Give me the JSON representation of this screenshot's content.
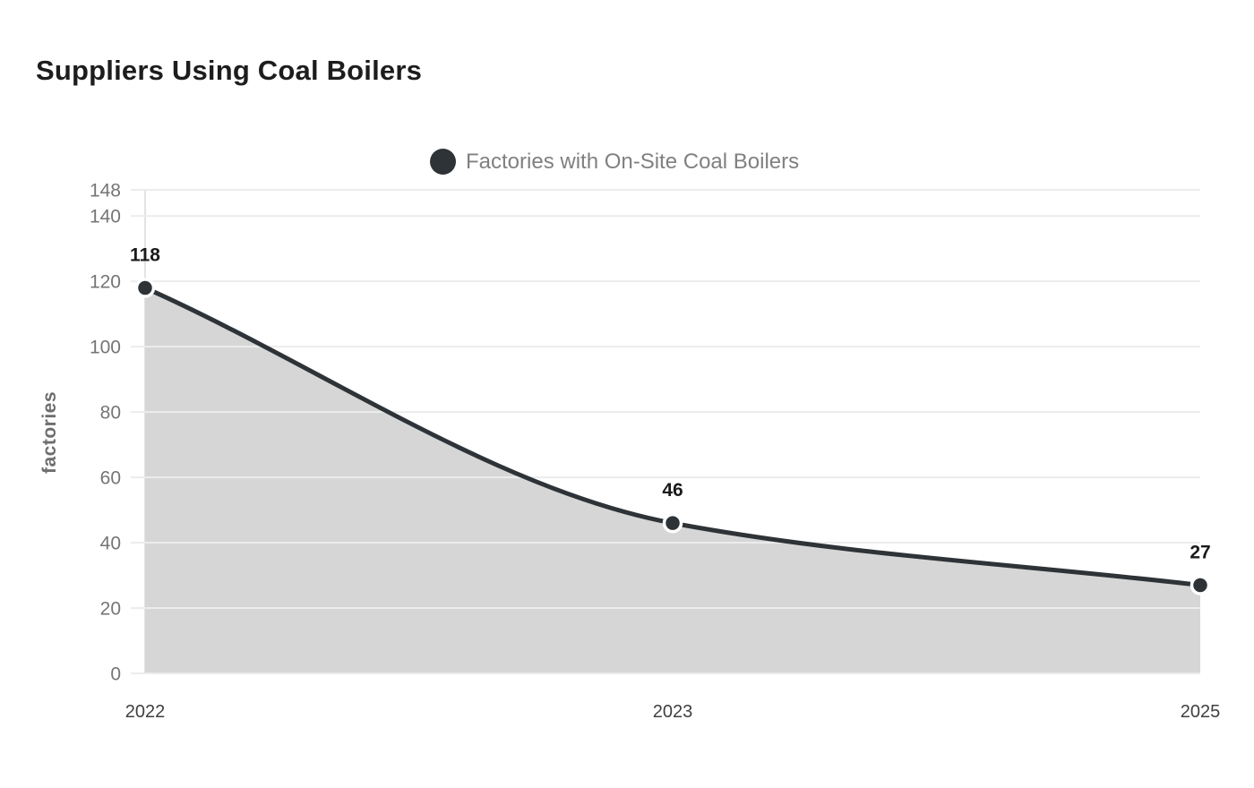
{
  "chart_data": {
    "type": "area",
    "title": "Suppliers Using Coal Boilers",
    "xlabel": "",
    "ylabel": "factories",
    "categories": [
      "2022",
      "2023",
      "2025"
    ],
    "series": [
      {
        "name": "Factories with On-Site Coal Boilers",
        "values": [
          118,
          46,
          27
        ]
      }
    ],
    "point_labels": [
      "118",
      "46",
      "27"
    ],
    "y_ticks": [
      0,
      20,
      40,
      60,
      80,
      100,
      120,
      140,
      148
    ],
    "ylim": [
      0,
      148
    ],
    "grid": true,
    "legend_position": "top-center",
    "colors": {
      "line": "#2e3338",
      "point_fill": "#2e3338",
      "point_ring": "#ffffff",
      "area_fill": "#d6d6d6",
      "gridline": "#ececec",
      "axis_line": "#e3e3e3",
      "y_tick_label": "#757575",
      "x_tick_label": "#3f3f3f",
      "title": "#1d1d1d",
      "legend_text": "#808080",
      "data_label": "#1a1a1a",
      "axis_label": "#6e6e6e",
      "background": "#ffffff"
    }
  }
}
